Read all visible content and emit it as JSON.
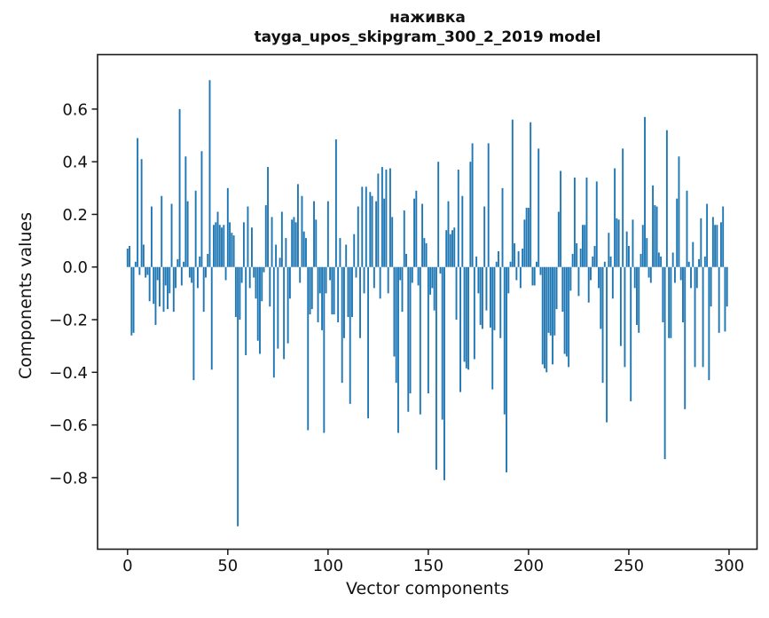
{
  "figure": {
    "title_line1": "наживка",
    "title_line2": "tayga_upos_skipgram_300_2_2019 model"
  },
  "chart_data": {
    "type": "bar",
    "title": "наживка — tayga_upos_skipgram_300_2_2019 model",
    "xlabel": "Vector components",
    "ylabel": "Components values",
    "bar_color": "#1f77b4",
    "axis_color": "#1a1a1a",
    "grid": false,
    "legend": null,
    "xlim": [
      -14.95,
      313.95
    ],
    "ylim": [
      -1.072,
      0.807
    ],
    "xticks": [
      0,
      50,
      100,
      150,
      200,
      250,
      300
    ],
    "yticks": [
      0.6,
      0.4,
      0.2,
      0.0,
      -0.2,
      -0.4,
      -0.6,
      -0.8
    ],
    "ytick_labels": [
      "0.6",
      "0.4",
      "0.2",
      "0.0",
      "−0.2",
      "−0.4",
      "−0.6",
      "−0.8"
    ],
    "x_start": 0,
    "n_components": 300,
    "values": [
      0.07,
      0.08,
      -0.26,
      -0.25,
      0.02,
      0.49,
      -0.03,
      0.41,
      0.085,
      -0.04,
      -0.03,
      -0.13,
      0.23,
      -0.14,
      -0.22,
      -0.05,
      -0.15,
      0.27,
      -0.17,
      -0.07,
      -0.16,
      -0.1,
      0.24,
      -0.17,
      -0.08,
      0.03,
      0.6,
      -0.07,
      0.02,
      0.42,
      0.25,
      -0.04,
      -0.06,
      -0.43,
      0.29,
      -0.08,
      0.04,
      0.44,
      -0.17,
      -0.04,
      0.05,
      0.71,
      -0.39,
      0.16,
      0.17,
      0.21,
      0.16,
      0.15,
      0.16,
      -0.05,
      0.3,
      0.17,
      0.13,
      0.12,
      -0.19,
      -0.985,
      -0.2,
      -0.06,
      0.17,
      -0.335,
      0.23,
      -0.08,
      0.15,
      -0.04,
      -0.12,
      -0.28,
      -0.33,
      -0.13,
      -0.02,
      0.235,
      0.38,
      -0.15,
      0.19,
      -0.42,
      0.085,
      -0.31,
      0.035,
      0.21,
      -0.35,
      0.11,
      -0.29,
      -0.12,
      0.18,
      0.19,
      0.17,
      0.315,
      -0.06,
      0.27,
      0.135,
      0.11,
      -0.62,
      -0.18,
      -0.16,
      0.25,
      0.18,
      -0.21,
      -0.1,
      -0.24,
      -0.63,
      -0.1,
      0.25,
      -0.05,
      -0.18,
      -0.18,
      0.485,
      -0.21,
      0.11,
      -0.44,
      -0.27,
      0.085,
      -0.19,
      -0.52,
      -0.19,
      0.125,
      -0.04,
      0.23,
      -0.27,
      0.305,
      -0.1,
      0.305,
      -0.575,
      0.285,
      0.27,
      -0.08,
      0.25,
      0.355,
      -0.12,
      0.38,
      0.26,
      0.37,
      -0.1,
      0.375,
      0.19,
      -0.34,
      -0.44,
      -0.63,
      -0.05,
      -0.17,
      0.215,
      0.05,
      -0.55,
      -0.48,
      -0.06,
      0.26,
      0.29,
      -0.07,
      -0.56,
      0.24,
      0.11,
      0.09,
      -0.48,
      -0.105,
      -0.08,
      -0.165,
      -0.77,
      0.4,
      -0.025,
      -0.58,
      -0.81,
      0.14,
      0.25,
      0.125,
      0.14,
      0.15,
      -0.2,
      0.37,
      -0.475,
      0.27,
      -0.36,
      -0.385,
      -0.39,
      0.4,
      0.47,
      -0.35,
      0.04,
      -0.1,
      -0.22,
      -0.235,
      0.23,
      -0.165,
      0.47,
      -0.23,
      -0.465,
      -0.24,
      0.02,
      0.06,
      -0.27,
      0.3,
      -0.56,
      -0.78,
      -0.1,
      0.02,
      0.56,
      0.09,
      -0.05,
      0.06,
      -0.08,
      0.07,
      0.18,
      0.225,
      0.225,
      0.55,
      -0.07,
      -0.07,
      0.02,
      0.45,
      -0.03,
      -0.37,
      -0.385,
      -0.4,
      -0.25,
      -0.26,
      -0.37,
      -0.26,
      -0.16,
      0.21,
      0.365,
      -0.17,
      -0.33,
      -0.34,
      -0.38,
      -0.09,
      0.05,
      0.34,
      0.09,
      -0.11,
      0.07,
      0.16,
      0.16,
      0.34,
      -0.135,
      -0.05,
      0.04,
      0.08,
      0.325,
      -0.08,
      -0.235,
      -0.44,
      0.02,
      -0.59,
      0.13,
      0.04,
      -0.12,
      0.375,
      0.185,
      0.18,
      -0.3,
      0.45,
      -0.38,
      0.135,
      0.08,
      -0.51,
      0.18,
      -0.08,
      -0.22,
      -0.25,
      0.05,
      0.16,
      0.57,
      0.11,
      -0.04,
      -0.06,
      0.31,
      0.235,
      0.23,
      0.055,
      0.04,
      -0.21,
      -0.73,
      0.52,
      -0.27,
      -0.27,
      0.055,
      -0.06,
      0.26,
      0.42,
      -0.05,
      -0.21,
      -0.54,
      0.29,
      0.02,
      -0.08,
      0.095,
      -0.38,
      -0.08,
      0.03,
      0.185,
      -0.38,
      0.04,
      0.24,
      -0.43,
      -0.15,
      0.19,
      0.16,
      0.16,
      -0.25,
      0.17,
      0.23,
      -0.245,
      -0.15
    ]
  }
}
